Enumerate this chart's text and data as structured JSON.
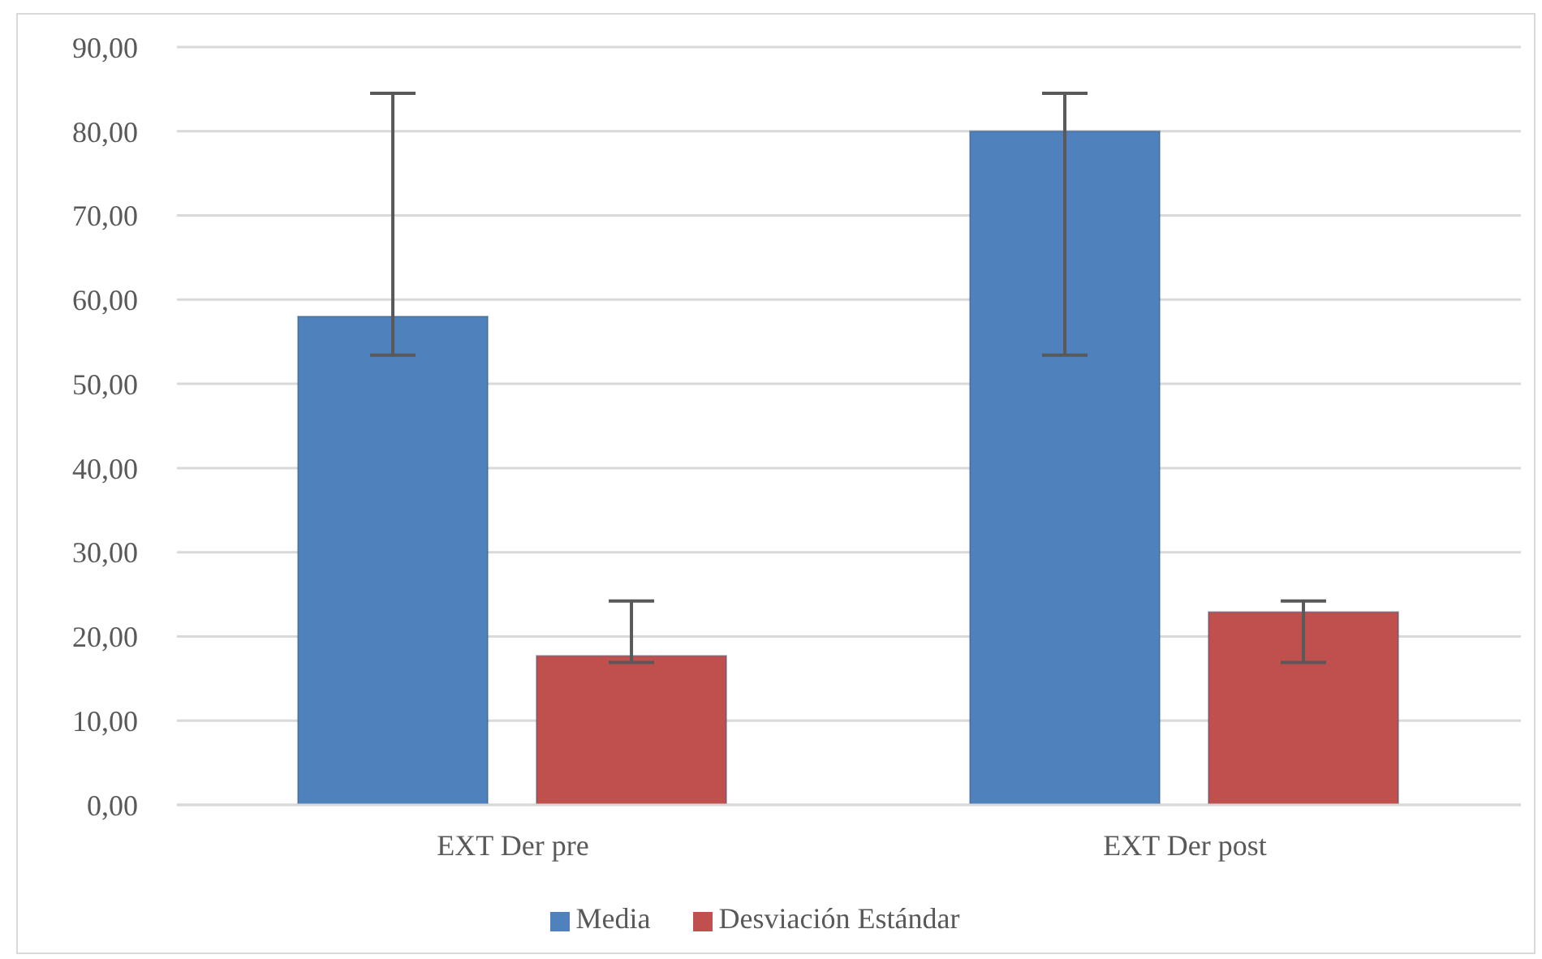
{
  "chart_data": {
    "type": "bar",
    "categories": [
      "EXT Der pre",
      "EXT Der post"
    ],
    "series": [
      {
        "name": "Media",
        "color": "#4f81bd",
        "values": [
          58,
          80
        ],
        "errors": [
          [
            53.4,
            84.5
          ],
          [
            53.4,
            84.5
          ]
        ]
      },
      {
        "name": "Desviación Estándar",
        "color": "#c0504d",
        "values": [
          17.7,
          22.9
        ],
        "errors": [
          [
            16.9,
            24.2
          ],
          [
            16.9,
            24.2
          ]
        ]
      }
    ],
    "ylim": [
      0,
      90
    ],
    "yticks": [
      {
        "value": 0,
        "label": "0,00"
      },
      {
        "value": 10,
        "label": "10,00"
      },
      {
        "value": 20,
        "label": "20,00"
      },
      {
        "value": 30,
        "label": "30,00"
      },
      {
        "value": 40,
        "label": "40,00"
      },
      {
        "value": 50,
        "label": "50,00"
      },
      {
        "value": 60,
        "label": "60,00"
      },
      {
        "value": 70,
        "label": "70,00"
      },
      {
        "value": 80,
        "label": "80,00"
      },
      {
        "value": 90,
        "label": "90,00"
      }
    ],
    "grid": "y",
    "legend": "bottom"
  }
}
